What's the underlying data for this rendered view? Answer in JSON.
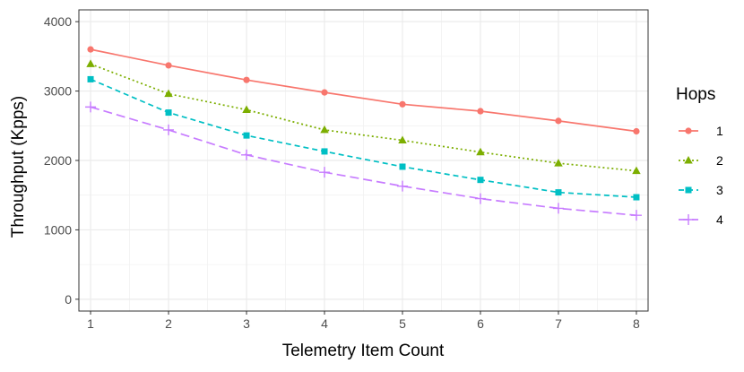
{
  "chart_data": {
    "type": "line",
    "title": "",
    "xlabel": "Telemetry Item Count",
    "ylabel": "Throughput (Kpps)",
    "x": [
      1,
      2,
      3,
      4,
      5,
      6,
      7,
      8
    ],
    "xlim": [
      0.85,
      8.15
    ],
    "ylim": [
      -170,
      4170
    ],
    "xticks": [
      1,
      2,
      3,
      4,
      5,
      6,
      7,
      8
    ],
    "yticks": [
      0,
      1000,
      2000,
      3000,
      4000
    ],
    "grid": true,
    "legend": {
      "title": "Hops",
      "position": "right"
    },
    "series": [
      {
        "name": "1",
        "color": "#F8766D",
        "marker": "circle",
        "line": "solid",
        "values": [
          3600,
          3370,
          3160,
          2980,
          2810,
          2710,
          2570,
          2420
        ]
      },
      {
        "name": "2",
        "color": "#7CAE00",
        "marker": "triangle",
        "line": "dotted",
        "values": [
          3390,
          2960,
          2730,
          2440,
          2290,
          2120,
          1960,
          1850
        ]
      },
      {
        "name": "3",
        "color": "#00BFC4",
        "marker": "square",
        "line": "dashed",
        "values": [
          3170,
          2690,
          2360,
          2130,
          1910,
          1720,
          1540,
          1470
        ]
      },
      {
        "name": "4",
        "color": "#C77CFF",
        "marker": "plus",
        "line": "longdash",
        "values": [
          2770,
          2440,
          2080,
          1830,
          1630,
          1450,
          1310,
          1210
        ]
      }
    ]
  }
}
